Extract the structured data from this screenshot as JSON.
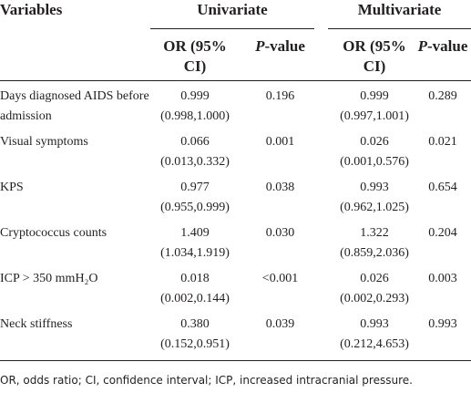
{
  "table": {
    "header": {
      "variables": "Variables",
      "groups": [
        "Univariate",
        "Multivariate"
      ],
      "or_label": "OR (95% CI)",
      "p_label": {
        "symbol": "P",
        "suffix": "-value"
      }
    },
    "rows": [
      {
        "label": "Days diagnosed AIDS before admission",
        "uni_or": "0.999",
        "uni_ci": "(0.998,1.000)",
        "uni_p": "0.196",
        "multi_or": "0.999",
        "multi_ci": "(0.997,1.001)",
        "multi_p": "0.289"
      },
      {
        "label": "Visual symptoms",
        "uni_or": "0.066",
        "uni_ci": "(0.013,0.332)",
        "uni_p": "0.001",
        "multi_or": "0.026",
        "multi_ci": "(0.001,0.576)",
        "multi_p": "0.021"
      },
      {
        "label": "KPS",
        "uni_or": "0.977",
        "uni_ci": "(0.955,0.999)",
        "uni_p": "0.038",
        "multi_or": "0.993",
        "multi_ci": "(0.962,1.025)",
        "multi_p": "0.654"
      },
      {
        "label": "Cryptococcus counts",
        "uni_or": "1.409",
        "uni_ci": "(1.034,1.919)",
        "uni_p": "0.030",
        "multi_or": "1.322",
        "multi_ci": "(0.859,2.036)",
        "multi_p": "0.204"
      },
      {
        "label": "ICP > 350 mmH₂O",
        "uni_or": "0.018",
        "uni_ci": "(0.002,0.144)",
        "uni_p": "<0.001",
        "multi_or": "0.026",
        "multi_ci": "(0.002,0.293)",
        "multi_p": "0.003"
      },
      {
        "label": "Neck stiffness",
        "uni_or": "0.380",
        "uni_ci": "(0.152,0.951)",
        "uni_p": "0.039",
        "multi_or": "0.993",
        "multi_ci": "(0.212,4.653)",
        "multi_p": "0.993"
      }
    ],
    "footnote": "OR, odds ratio; CI, confidence interval; ICP, increased intracranial pressure."
  }
}
